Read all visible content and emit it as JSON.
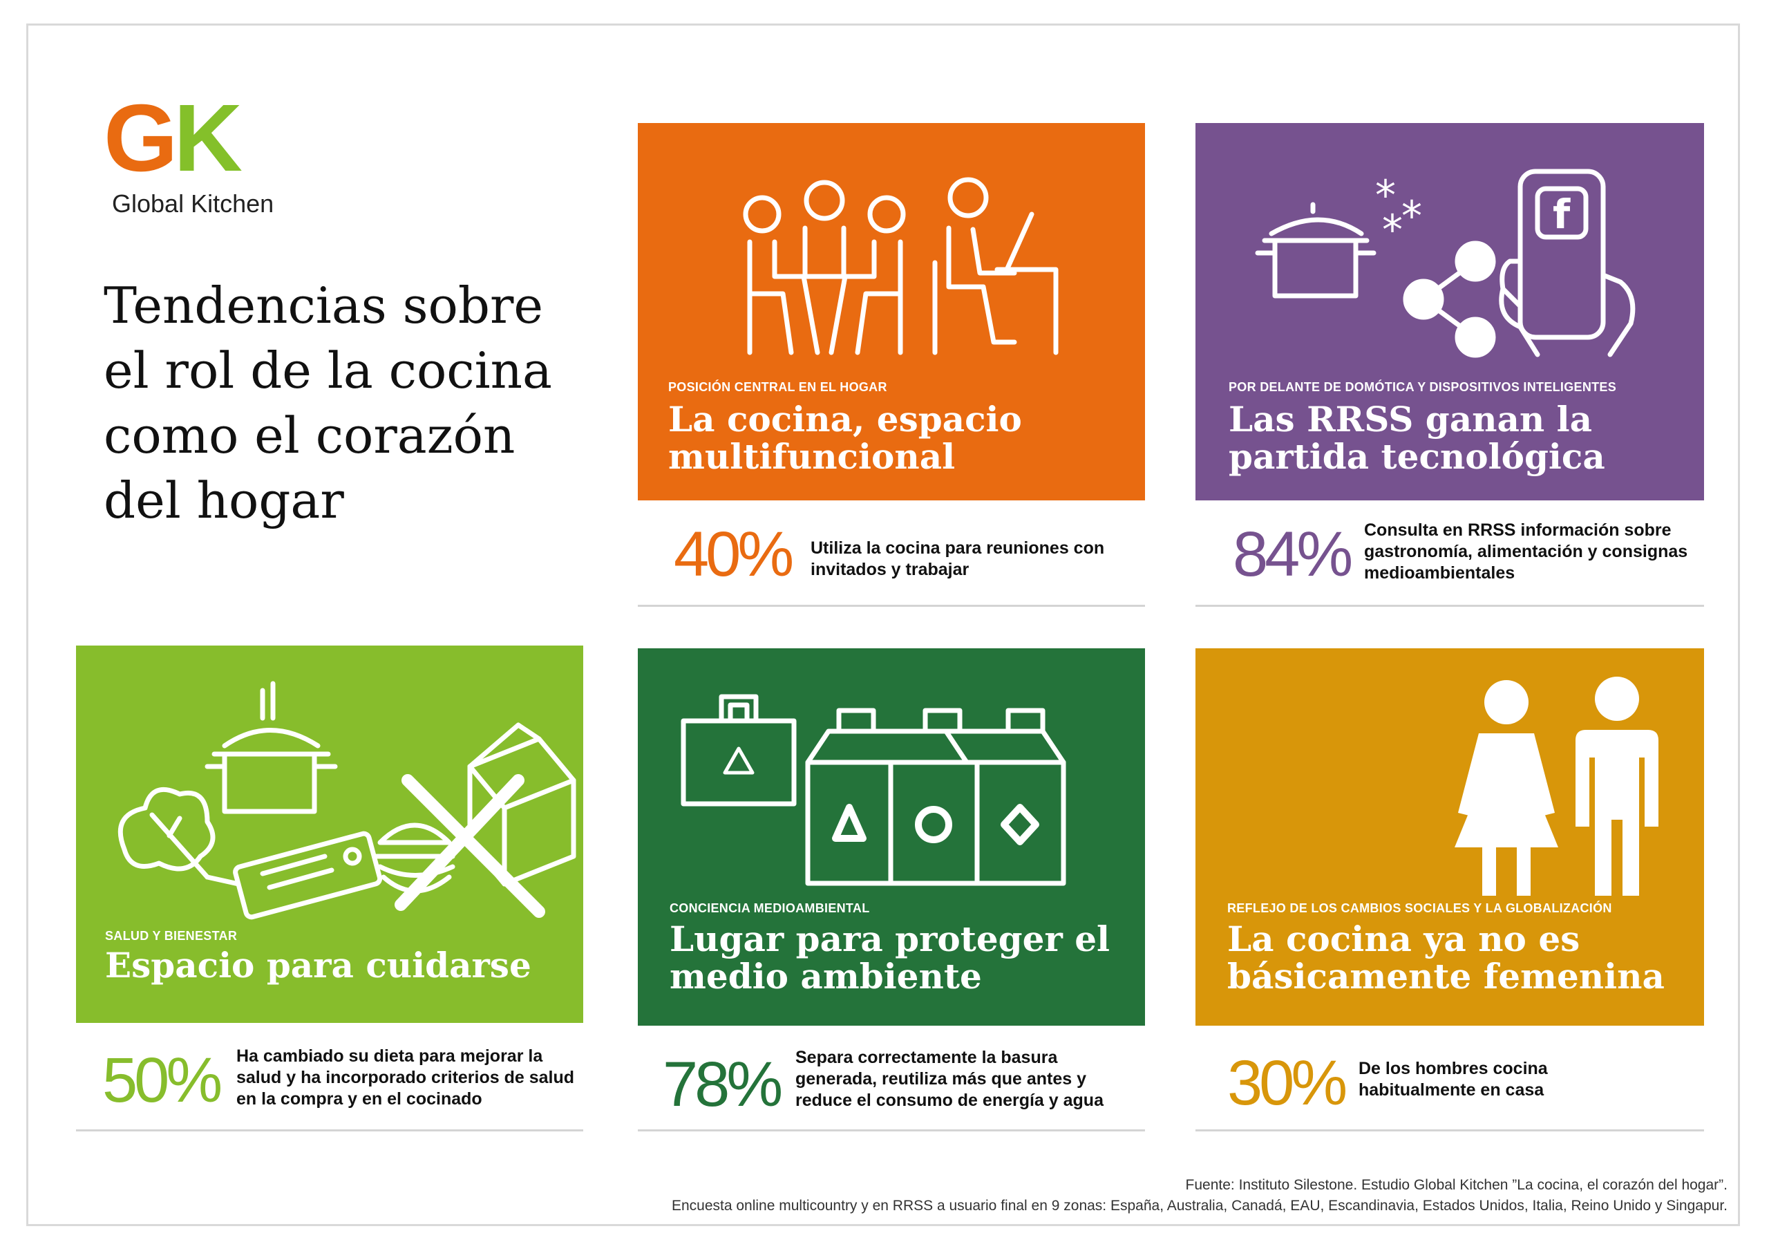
{
  "logo": {
    "letters_g": "G",
    "letters_k": "K",
    "name": "Global Kitchen"
  },
  "headline": "Tendencias sobre el rol de la cocina como el corazón del hogar",
  "colors": {
    "orange": "#e96b11",
    "purple": "#76528f",
    "lime": "#87bd2c",
    "green": "#24733a",
    "gold": "#d8960a"
  },
  "panels": {
    "orange": {
      "kicker": "POSICIÓN CENTRAL EN EL HOGAR",
      "title": "La cocina, espacio multifuncional",
      "pct": "40%",
      "desc": "Utiliza la cocina para reuniones con invitados y trabajar"
    },
    "purple": {
      "kicker": "POR DELANTE DE DOMÓTICA Y DISPOSITIVOS INTELIGENTES",
      "title": "Las RRSS ganan la partida tecnológica",
      "pct": "84%",
      "desc": "Consulta en RRSS información sobre gastronomía, alimentación y consignas medioambientales"
    },
    "lime": {
      "kicker": "SALUD Y BIENESTAR",
      "title": "Espacio para cuidarse",
      "pct": "50%",
      "desc": "Ha cambiado su dieta para mejorar la salud y ha incorporado criterios de salud en la compra y en el cocinado"
    },
    "green": {
      "kicker": "CONCIENCIA MEDIOAMBIENTAL",
      "title": "Lugar para proteger el medio ambiente",
      "pct": "78%",
      "desc": "Separa correctamente la basura generada, reutiliza más que antes y reduce el consumo de energía y agua"
    },
    "gold": {
      "kicker": "REFLEJO DE LOS CAMBIOS SOCIALES Y LA GLOBALIZACIÓN",
      "title": "La cocina ya no es básicamente femenina",
      "pct": "30%",
      "desc": "De los hombres cocina habitualmente en casa"
    }
  },
  "icons": {
    "orange": "people-meeting-icon",
    "purple": "social-media-icon",
    "lime": "healthy-food-icon",
    "green": "recycling-icon",
    "gold": "woman-man-icon",
    "facebook_letter": "f"
  },
  "footer": {
    "line1": "Fuente: Instituto Silestone. Estudio Global Kitchen ”La cocina, el corazón del hogar”.",
    "line2": "Encuesta online multicountry y en RRSS a usuario final en 9 zonas: España, Australia, Canadá, EAU, Escandinavia, Estados Unidos, Italia, Reino Unido y Singapur."
  }
}
